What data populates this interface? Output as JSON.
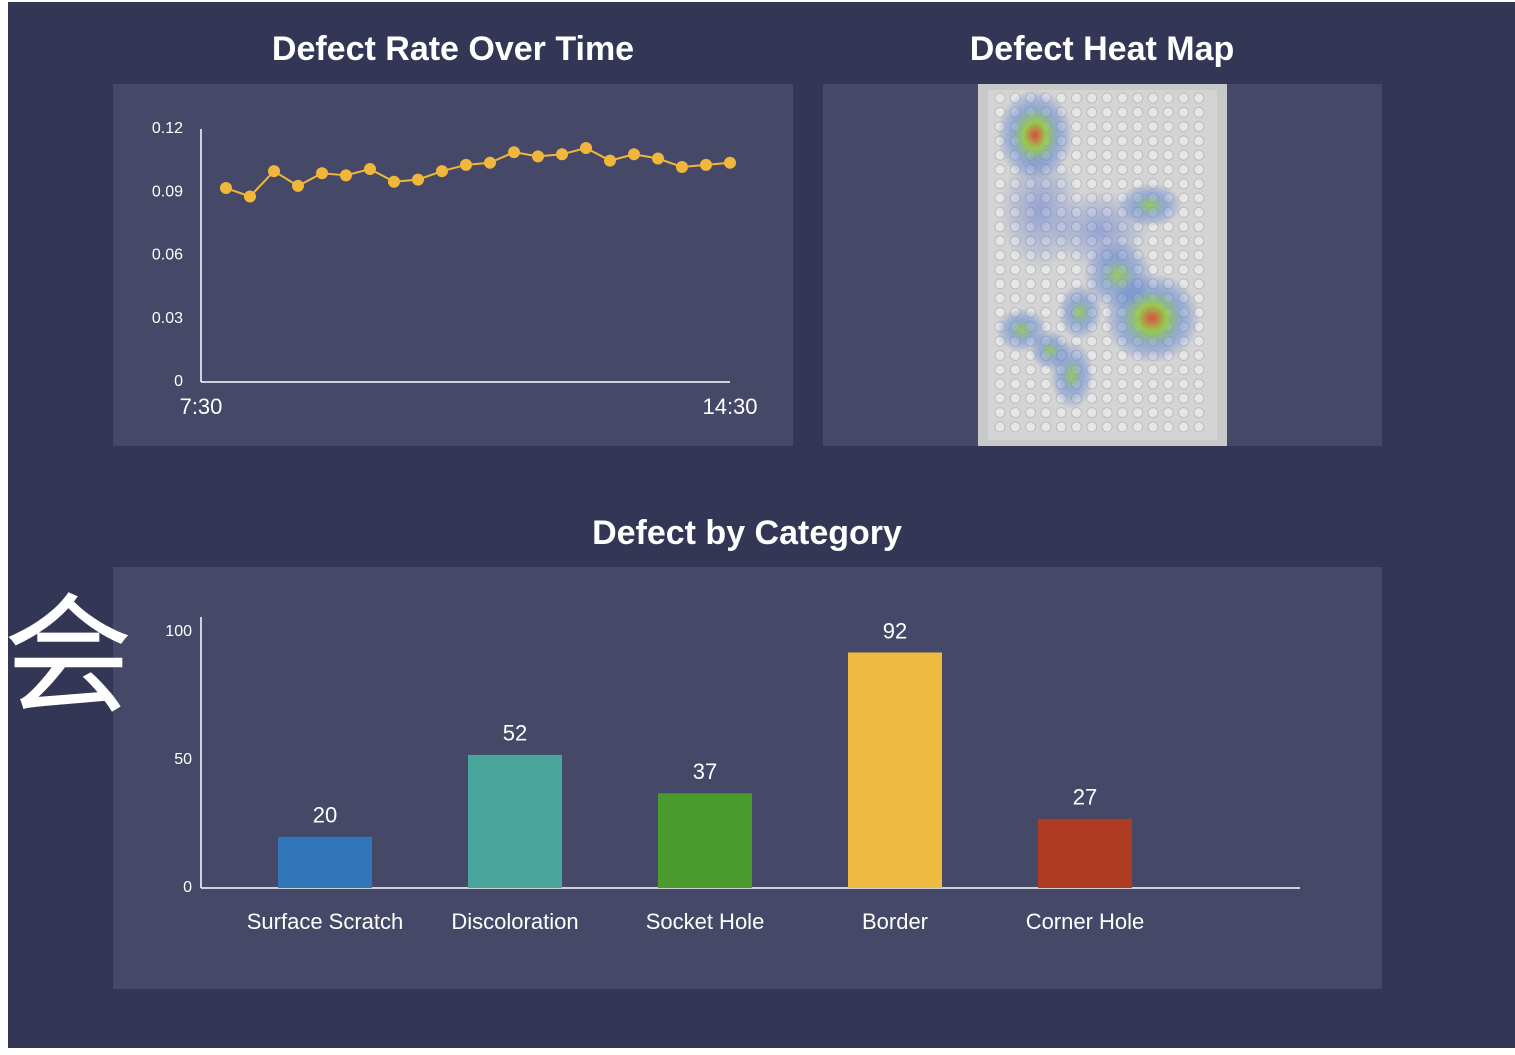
{
  "overlay_text": "会",
  "chart_data": [
    {
      "type": "line",
      "title": "Defect Rate Over Time",
      "categories": [
        "7:30",
        null,
        null,
        null,
        null,
        null,
        null,
        null,
        null,
        null,
        null,
        null,
        null,
        null,
        null,
        null,
        null,
        null,
        null,
        null,
        null,
        "14:30"
      ],
      "values": [
        0.092,
        0.088,
        0.1,
        0.093,
        0.099,
        0.098,
        0.101,
        0.095,
        0.096,
        0.1,
        0.103,
        0.104,
        0.109,
        0.107,
        0.108,
        0.111,
        0.105,
        0.108,
        0.106,
        0.102,
        0.103,
        0.104
      ],
      "color": "#f0b73a",
      "ylim": [
        0,
        0.12
      ],
      "yticks": [
        0,
        0.03,
        0.06,
        0.09,
        0.12
      ]
    },
    {
      "type": "heatmap",
      "title": "Defect Heat Map"
    },
    {
      "type": "bar",
      "title": "Defect by Category",
      "categories": [
        "Surface Scratch",
        "Discoloration",
        "Socket Hole",
        "Border",
        "Corner Hole"
      ],
      "values": [
        20,
        52,
        37,
        92,
        27
      ],
      "colors": [
        "#3176b9",
        "#4aa59c",
        "#4a9a2e",
        "#eeba40",
        "#ae3b22"
      ],
      "ylim": [
        0,
        100
      ],
      "yticks": [
        0,
        50,
        100
      ]
    }
  ]
}
